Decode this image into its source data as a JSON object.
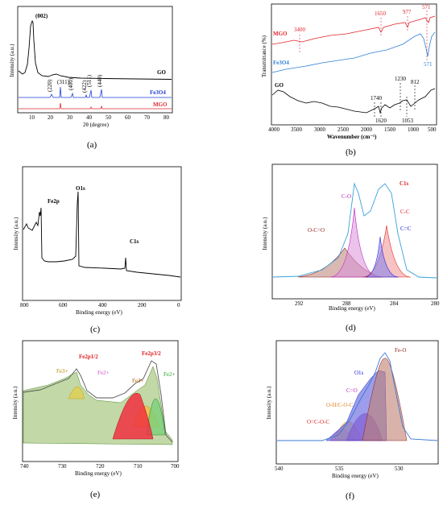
{
  "chart_data": [
    {
      "id": "a",
      "type": "line",
      "caption": "(a)",
      "xlabel": "2θ (degree)",
      "ylabel": "Intensity (a.u.)",
      "xlim": [
        5,
        80
      ],
      "xticks": [
        "10",
        "20",
        "30",
        "40",
        "50",
        "60",
        "70",
        "80"
      ],
      "series": [
        {
          "name": "GO",
          "color": "#000000",
          "x": [
            5,
            7,
            8,
            9,
            9.5,
            10,
            10.3,
            10.6,
            11,
            11.5,
            12,
            13,
            15,
            18,
            20,
            22,
            24,
            26,
            28,
            30,
            35,
            40,
            45,
            50,
            60,
            70,
            80
          ],
          "y": [
            0.55,
            0.42,
            0.45,
            0.7,
            1.2,
            2.6,
            3.0,
            2.2,
            0.9,
            0.45,
            0.3,
            0.22,
            0.18,
            0.17,
            0.22,
            0.24,
            0.2,
            0.16,
            0.14,
            0.12,
            0.1,
            0.08,
            0.08,
            0.07,
            0.06,
            0.06,
            0.05
          ]
        },
        {
          "name": "Fe3O4",
          "color": "#1f3fd6",
          "x": [
            5,
            29,
            30,
            31,
            34,
            35.5,
            37,
            42,
            43.3,
            44.5,
            52,
            53.4,
            54.5,
            56,
            57.2,
            58.5,
            61.5,
            62.8,
            64,
            80
          ],
          "y": [
            0,
            0,
            0.25,
            0,
            0,
            0.85,
            0,
            0,
            0.3,
            0,
            0,
            0.2,
            0,
            0,
            0.45,
            0,
            0,
            0.55,
            0,
            0
          ]
        },
        {
          "name": "MGO",
          "color": "#e0252b",
          "x": [
            5,
            34,
            35.5,
            37,
            56.5,
            57.2,
            58,
            62,
            62.8,
            63.6,
            80
          ],
          "y": [
            0,
            0,
            0.22,
            0,
            0,
            0.08,
            0,
            0,
            0.1,
            0,
            0
          ]
        }
      ],
      "annotations": [
        "(002)",
        "(220)",
        "(311)",
        "(400)",
        "(422)",
        "(511)",
        "(440)"
      ],
      "legend": [
        "GO",
        "Fe3O4",
        "MGO"
      ]
    },
    {
      "id": "b",
      "type": "line",
      "caption": "(b)",
      "xlabel": "Wavenumber (cm⁻¹)",
      "ylabel": "Transmittance (%)",
      "xlim": [
        4000,
        450
      ],
      "xticks": [
        "4000",
        "3500",
        "3000",
        "2500",
        "2000",
        "1500",
        "1000",
        "500"
      ],
      "series": [
        {
          "name": "MGO",
          "color": "#e0252b"
        },
        {
          "name": "Fe3O4",
          "color": "#2f7fd9"
        },
        {
          "name": "GO",
          "color": "#000000"
        }
      ],
      "annotations_red": [
        "3400",
        "1650",
        "977",
        "571"
      ],
      "annotations_blue": [
        "571"
      ],
      "annotations_black": [
        "1740",
        "1620",
        "1230",
        "1053",
        "812"
      ]
    },
    {
      "id": "c",
      "type": "line",
      "caption": "(c)",
      "xlabel": "Binding energy (eV)",
      "ylabel": "Intensity (a.u.)",
      "xlim": [
        800,
        0
      ],
      "xticks": [
        "800",
        "600",
        "400",
        "200",
        "0"
      ],
      "peaks": [
        "Fe2p",
        "O1s",
        "C1s"
      ]
    },
    {
      "id": "d",
      "type": "area",
      "caption": "(d)",
      "xlabel": "Binding energy (eV)",
      "ylabel": "Intensity (a.u.)",
      "xlim": [
        293,
        280
      ],
      "xticks": [
        "292",
        "288",
        "284",
        "280"
      ],
      "components": [
        {
          "name": "C-O",
          "color": "#c020c0"
        },
        {
          "name": "C-C",
          "color": "#e02020"
        },
        {
          "name": "C=C",
          "color": "#2020e0"
        },
        {
          "name": "O-C=O",
          "color": "#8b1a1a"
        }
      ],
      "label_total": "C1s"
    },
    {
      "id": "e",
      "type": "area",
      "caption": "(e)",
      "xlabel": "Binding energy (eV)",
      "ylabel": "Intensity (a.u.)",
      "xlim": [
        740,
        700
      ],
      "xticks": [
        "740",
        "730",
        "720",
        "710",
        "700"
      ],
      "labels": [
        "Fe3+",
        "Fe2p1/2",
        "Fe2+",
        "Fe3+",
        "Fe2p3/2",
        "Fe2+"
      ]
    },
    {
      "id": "f",
      "type": "area",
      "caption": "(f)",
      "xlabel": "Binding energy (eV)",
      "ylabel": "Intensity (a.u.)",
      "xlim": [
        540,
        527
      ],
      "xticks": [
        "540",
        "535",
        "530"
      ],
      "components": [
        {
          "name": "Fe-O",
          "color": "#8b1a1a"
        },
        {
          "name": "O1s",
          "color": "#2020e0"
        },
        {
          "name": "C=O",
          "color": "#c020c0"
        },
        {
          "name": "O-H/C-O-C",
          "color": "#e08020"
        },
        {
          "name": "O=C-O-C",
          "color": "#e02020"
        }
      ]
    }
  ],
  "labels": {
    "a_go": "GO",
    "a_fe": "Fe3O4",
    "a_mgo": "MGO",
    "a_002": "(002)",
    "a_220": "(220)",
    "a_311": "(311)",
    "a_400": "(400)",
    "a_422": "(422)",
    "a_511": "(511)",
    "a_440": "(440)",
    "b_mgo": "MGO",
    "b_fe": "Fe3O4",
    "b_go": "GO",
    "b_3400": "3400",
    "b_1650": "1650",
    "b_977": "977",
    "b_571r": "571",
    "b_571b": "571",
    "b_1740": "1740",
    "b_1620": "1620",
    "b_1230": "1230",
    "b_1053": "1053",
    "b_812": "812",
    "c_fe2p": "Fe2p",
    "c_o1s": "O1s",
    "c_c1s": "C1s",
    "d_c1s": "C1s",
    "d_co": "C-O",
    "d_cc": "C-C",
    "d_cdc": "C=C",
    "d_occo": "O-C=O",
    "e_fe3a": "Fe3+",
    "e_fe2p12": "Fe2p1/2",
    "e_fe2a": "Fe2+",
    "e_fe3b": "Fe3+",
    "e_fe2p32": "Fe2p3/2",
    "e_fe2b": "Fe2+",
    "f_feo": "Fe-O",
    "f_o1s": "O1s",
    "f_co": "C=O",
    "f_oh": "O-H/C-O-C",
    "f_ococ": "O=C-O-C",
    "xl_a": "2θ (degree)",
    "xl_b": "Wavenumber (cm⁻¹)",
    "xl_be": "Binding energy (eV)",
    "yl_int": "Intensity (a.u.)",
    "yl_tr": "Transmittance (%)",
    "cap_a": "(a)",
    "cap_b": "(b)",
    "cap_c": "(c)",
    "cap_d": "(d)",
    "cap_e": "(e)",
    "cap_f": "(f)"
  }
}
